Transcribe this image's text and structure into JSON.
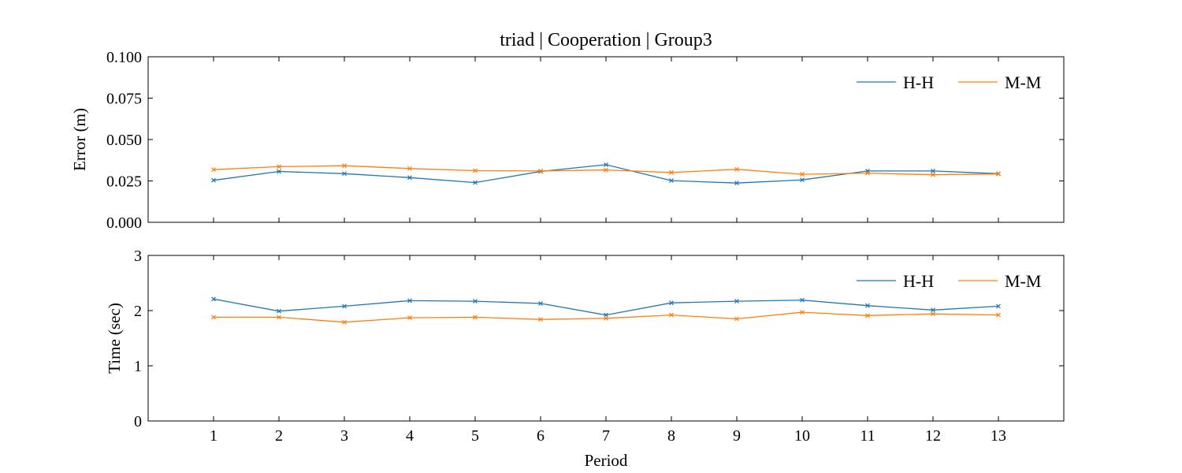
{
  "chart_data": {
    "type": "line",
    "title": "triad | Cooperation | Group3",
    "xlabel": "Period",
    "x": [
      1,
      2,
      3,
      4,
      5,
      6,
      7,
      8,
      9,
      10,
      11,
      12,
      13
    ],
    "xlim": [
      0,
      14
    ],
    "x_ticks": [
      "1",
      "2",
      "3",
      "4",
      "5",
      "6",
      "7",
      "8",
      "9",
      "10",
      "11",
      "12",
      "13"
    ],
    "legend_placement": "top-right",
    "grid": false,
    "colors": {
      "H-H": "#1f77b4",
      "M-M": "#ff7f0e"
    },
    "panels": [
      {
        "ylabel": "Error (m)",
        "ylim": [
          0,
          0.1
        ],
        "y_ticks": [
          "0.000",
          "0.025",
          "0.050",
          "0.075",
          "0.100"
        ],
        "y_tick_values": [
          0,
          0.025,
          0.05,
          0.075,
          0.1
        ],
        "legend": [
          "H-H",
          "M-M"
        ],
        "series": [
          {
            "name": "H-H",
            "marker": "x",
            "values": [
              0.0254,
              0.0307,
              0.0294,
              0.027,
              0.024,
              0.0307,
              0.0348,
              0.0252,
              0.0237,
              0.0256,
              0.031,
              0.031,
              0.0294
            ]
          },
          {
            "name": "M-M",
            "marker": "x",
            "values": [
              0.0318,
              0.0336,
              0.0342,
              0.0325,
              0.0312,
              0.031,
              0.0316,
              0.0301,
              0.032,
              0.029,
              0.0297,
              0.0287,
              0.0292
            ]
          }
        ]
      },
      {
        "ylabel": "Time (sec)",
        "ylim": [
          0,
          3
        ],
        "y_ticks": [
          "0",
          "1",
          "2",
          "3"
        ],
        "y_tick_values": [
          0,
          1,
          2,
          3
        ],
        "legend": [
          "H-H",
          "M-M"
        ],
        "series": [
          {
            "name": "H-H",
            "marker": "x",
            "values": [
              2.21,
              1.99,
              2.08,
              2.18,
              2.17,
              2.13,
              1.92,
              2.14,
              2.17,
              2.19,
              2.09,
              2.01,
              2.08
            ]
          },
          {
            "name": "M-M",
            "marker": "x",
            "values": [
              1.88,
              1.88,
              1.79,
              1.87,
              1.88,
              1.84,
              1.86,
              1.92,
              1.85,
              1.97,
              1.91,
              1.94,
              1.92
            ]
          }
        ]
      }
    ]
  }
}
